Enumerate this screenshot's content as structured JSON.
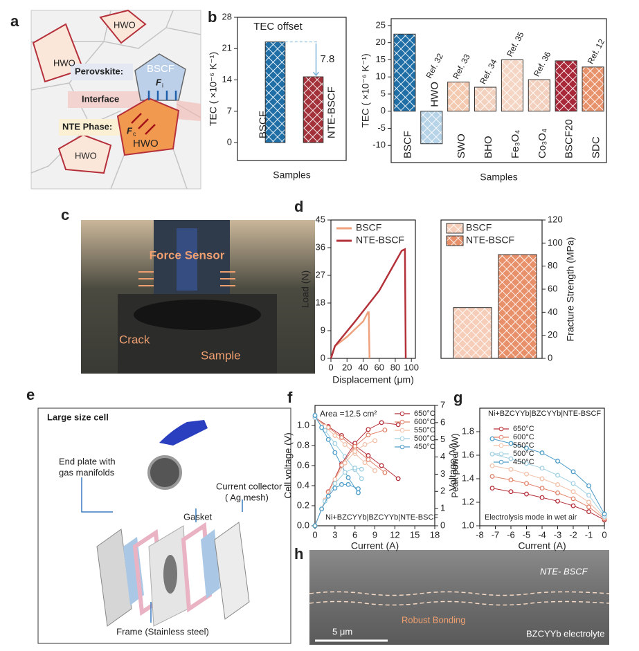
{
  "panel_labels": [
    "a",
    "b",
    "c",
    "d",
    "e",
    "f",
    "g",
    "h"
  ],
  "panel_a": {
    "phases": [
      "HWO",
      "HWO",
      "HWO",
      "HWO"
    ],
    "perovskite_phase": "BSCF",
    "perovskite": "Perovskite:",
    "interface": "Interface",
    "nte_phase": "NTE Phase:",
    "forces": [
      {
        "symbol": "F",
        "sub": "i"
      },
      {
        "symbol": "F",
        "sub": "c"
      }
    ]
  },
  "panel_c": {
    "labels": [
      "Force Sensor",
      "Crack",
      "Sample"
    ]
  },
  "panel_e": {
    "title": "Large size cell",
    "labels": [
      "End plate with",
      "gas manifolds",
      "Gasket",
      "Current collector",
      "( Ag mesh)",
      "Frame (Stainless steel)"
    ]
  },
  "panel_h": {
    "labels": [
      "NTE- BSCF",
      "Robust Bonding",
      "BZCYYb electrolyte",
      "5 μm"
    ]
  },
  "chart_data": [
    {
      "type": "bar",
      "categories": [
        "BSCF",
        "NTE-BSCF"
      ],
      "values": [
        22.5,
        14.7
      ],
      "colors": [
        "#1f6ea6",
        "#a3313a"
      ],
      "ylim": [
        -4,
        28
      ],
      "yticks": [
        0,
        7,
        14,
        21,
        28
      ],
      "ylabel": "TEC ( ×10⁻⁶ K⁻¹)",
      "xlabel": "Samples",
      "annotations": [
        "TEC offset"
      ],
      "offset": 7.8
    },
    {
      "type": "bar",
      "categories": [
        "BSCF",
        "HWO",
        "SWO",
        "BHO",
        "Fe₃O₄",
        "Co₃O₄",
        "BSCF20",
        "SDC"
      ],
      "values": [
        22.5,
        -9.5,
        8.5,
        7,
        15,
        9.2,
        14.7,
        12.9
      ],
      "colors": [
        "#1f6ea6",
        "#b7d3e8",
        "#f3c9b0",
        "#f3d1bf",
        "#f5d6c4",
        "#f2d0bd",
        "#a8283a",
        "#e8926c"
      ],
      "refs": [
        null,
        "Ref. 32",
        "Ref. 33",
        "Ref. 34",
        "Ref. 35",
        "Ref. 36",
        null,
        "Ref. 12"
      ],
      "ref_colors": [
        null,
        "#8fbfdc",
        "#eea27e",
        "#eea27e",
        "#eea27e",
        "#eea27e",
        null,
        "#a8283a"
      ],
      "ylim": [
        -15,
        27
      ],
      "yticks": [
        -10,
        -5,
        0,
        5,
        10,
        15,
        20,
        25
      ],
      "ylabel": "TEC ( ×10⁻⁶ K⁻¹)",
      "xlabel": "Samples"
    },
    {
      "type": "line",
      "xlim": [
        0,
        105
      ],
      "xticks": [
        0,
        20,
        40,
        60,
        80,
        100
      ],
      "ylim": [
        0,
        45
      ],
      "yticks": [
        0,
        9,
        18,
        27,
        36,
        45
      ],
      "xlabel": "Displacement (μm)",
      "ylabel": "Load (N)",
      "legend": "upper left",
      "series": [
        {
          "name": "BSCF",
          "color": "#eea27e",
          "x": [
            0,
            5,
            20,
            40,
            46,
            47,
            48
          ],
          "values": [
            0,
            4,
            7,
            12,
            15,
            15,
            0
          ]
        },
        {
          "name": "NTE-BSCF",
          "color": "#b3323a",
          "x": [
            0,
            5,
            30,
            60,
            88,
            92,
            93
          ],
          "values": [
            0,
            4,
            12,
            22,
            35,
            35.5,
            0
          ]
        }
      ]
    },
    {
      "type": "bar",
      "ylim": [
        0,
        120
      ],
      "yticks": [
        0,
        20,
        40,
        60,
        80,
        100,
        120
      ],
      "ylabel": "Fracture Strength (MPa)",
      "legend": "upper left",
      "series": [
        {
          "name": "BSCF",
          "color": "#f6cdb8",
          "values": [
            44
          ]
        },
        {
          "name": "NTE-BSCF",
          "color": "#e8906a",
          "values": [
            90
          ]
        }
      ]
    },
    {
      "type": "line",
      "xlim": [
        0,
        18
      ],
      "xticks": [
        0,
        3,
        6,
        9,
        12,
        15,
        18
      ],
      "ylim": [
        0,
        1.2
      ],
      "yticks": [
        {
          "value": 0,
          "label": "0.0"
        },
        0.2,
        0.4,
        0.6,
        0.8,
        {
          "value": 1,
          "label": "1.0"
        }
      ],
      "y2lim": [
        0,
        7
      ],
      "y2ticks": [
        0,
        1,
        2,
        3,
        4,
        5,
        6,
        7
      ],
      "xlabel": "Current (A)",
      "ylabel": "Cell voltage (V)",
      "y2label": "Peak power (W)",
      "annotations": [
        "Area =12.5 cm²",
        "Ni+BZCYYb|BZCYYb|NTE-BSCF"
      ],
      "legend": "upper right",
      "markers": true,
      "series": [
        {
          "name": "650°C",
          "color": "#b5303a",
          "x": [
            0,
            2,
            4,
            6,
            8,
            10,
            12.5
          ],
          "values": [
            1.08,
            0.99,
            0.9,
            0.8,
            0.7,
            0.6,
            0.47
          ]
        },
        {
          "name": "600°C",
          "color": "#e0836a",
          "x": [
            0,
            2,
            4,
            6,
            8,
            10.5
          ],
          "values": [
            1.08,
            0.98,
            0.88,
            0.77,
            0.66,
            0.53
          ]
        },
        {
          "name": "550°C",
          "color": "#f2c0a8",
          "x": [
            0,
            1.5,
            3,
            4.5,
            6,
            7.5,
            9
          ],
          "values": [
            1.08,
            0.99,
            0.9,
            0.81,
            0.72,
            0.63,
            0.55
          ]
        },
        {
          "name": "500°C",
          "color": "#9fd0e3",
          "x": [
            0,
            1.5,
            3,
            4.5,
            6,
            7
          ],
          "values": [
            1.08,
            0.95,
            0.82,
            0.69,
            0.56,
            0.47
          ]
        },
        {
          "name": "450°C",
          "color": "#4d9cc7",
          "x": [
            0,
            1,
            2,
            3,
            4,
            5,
            6.5
          ],
          "values": [
            1.1,
            0.98,
            0.86,
            0.73,
            0.6,
            0.48,
            0.33
          ]
        },
        {
          "color": "#b5303a",
          "axis": "y2",
          "x": [
            0,
            2,
            4,
            6,
            8,
            10,
            12.5
          ],
          "values": [
            0,
            1.98,
            3.6,
            4.8,
            5.6,
            6.0,
            5.88
          ]
        },
        {
          "color": "#e0836a",
          "axis": "y2",
          "x": [
            0,
            2,
            4,
            6,
            8,
            10.5
          ],
          "values": [
            0,
            1.96,
            3.52,
            4.62,
            5.28,
            5.57
          ]
        },
        {
          "color": "#f2c0a8",
          "axis": "y2",
          "x": [
            0,
            1.5,
            3,
            4.5,
            6,
            7.5,
            9
          ],
          "values": [
            0,
            1.49,
            2.7,
            3.65,
            4.32,
            4.73,
            4.95
          ]
        },
        {
          "color": "#9fd0e3",
          "axis": "y2",
          "x": [
            0,
            1.5,
            3,
            4.5,
            6,
            7
          ],
          "values": [
            0,
            1.43,
            2.46,
            3.11,
            3.36,
            3.29
          ]
        },
        {
          "color": "#4d9cc7",
          "axis": "y2",
          "x": [
            0,
            1,
            2,
            3,
            4,
            5,
            6.5
          ],
          "values": [
            0,
            0.98,
            1.72,
            2.19,
            2.4,
            2.4,
            2.15
          ]
        }
      ]
    },
    {
      "type": "line",
      "xlim": [
        -8,
        0
      ],
      "xticks": [
        -8,
        -7,
        -6,
        -5,
        -4,
        -3,
        -2,
        -1,
        0
      ],
      "ylim": [
        1.0,
        2.0
      ],
      "yticks": [
        {
          "value": 1,
          "label": "1.0"
        },
        1.2,
        1.4,
        1.6,
        1.8
      ],
      "xlabel": "Current (A)",
      "ylabel": "Voltage (V)",
      "annotations": [
        "Ni+BZCYYb|BZCYYb|NTE-BSCF",
        "Electrolysis mode in wet air"
      ],
      "legend": "upper left",
      "markers": true,
      "series": [
        {
          "name": "650°C",
          "color": "#b5303a",
          "x": [
            -7.2,
            -6,
            -5,
            -4,
            -3,
            -2,
            -1,
            0
          ],
          "values": [
            1.32,
            1.29,
            1.27,
            1.24,
            1.21,
            1.17,
            1.12,
            1.05
          ]
        },
        {
          "name": "600°C",
          "color": "#e0836a",
          "x": [
            -7.2,
            -6,
            -5,
            -4,
            -3,
            -2,
            -1,
            0
          ],
          "values": [
            1.42,
            1.39,
            1.36,
            1.32,
            1.28,
            1.23,
            1.16,
            1.06
          ]
        },
        {
          "name": "550°C",
          "color": "#f2c0a8",
          "x": [
            -7.2,
            -6,
            -5,
            -4,
            -3,
            -2,
            -1,
            0
          ],
          "values": [
            1.51,
            1.48,
            1.44,
            1.4,
            1.35,
            1.29,
            1.2,
            1.07
          ]
        },
        {
          "name": "500°C",
          "color": "#9fd0e3",
          "x": [
            -7.2,
            -6,
            -5,
            -4,
            -3,
            -2,
            -1,
            0
          ],
          "values": [
            1.61,
            1.57,
            1.53,
            1.49,
            1.43,
            1.36,
            1.26,
            1.08
          ]
        },
        {
          "name": "450°C",
          "color": "#4d9cc7",
          "x": [
            -7.2,
            -6,
            -5,
            -4,
            -3,
            -2,
            -1,
            0
          ],
          "values": [
            1.74,
            1.7,
            1.66,
            1.62,
            1.55,
            1.46,
            1.34,
            1.1
          ]
        }
      ]
    }
  ]
}
